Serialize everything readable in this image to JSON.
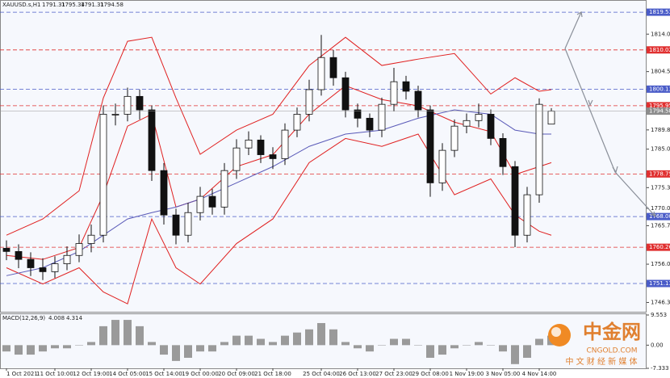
{
  "chart_data": {
    "type": "candlestick",
    "title": "XAUUSD.s,H1",
    "ohlc_header": [
      1791.31,
      1795.34,
      1791.31,
      1794.58
    ],
    "current_price": 1794.58,
    "categories": [
      "1 Oct 2021",
      null,
      null,
      null,
      "11 Oct 10:00",
      null,
      null,
      "12 Oct 19:00",
      null,
      null,
      "14 Oct 05:00",
      null,
      null,
      "15 Oct 14:00",
      null,
      null,
      "19 Oct 00:00",
      null,
      null,
      "20 Oct 09:00",
      null,
      null,
      "21 Oct 18:00",
      null,
      null,
      null,
      "25 Oct 04:00",
      null,
      null,
      "26 Oct 13:00",
      null,
      null,
      "27 Oct 23:00",
      null,
      null,
      "29 Oct 08:00",
      null,
      null,
      "1 Nov 19:00",
      null,
      null,
      "3 Nov 05:00",
      null,
      null,
      "4 Nov 14:00",
      null
    ],
    "open": [
      1760.0,
      1759.2,
      1757.2,
      1755.1,
      1754.1,
      1756.1,
      1758.2,
      1761.2,
      1763.3,
      1793.8,
      1793.8,
      1798.3,
      1794.9,
      1779.6,
      1768.4,
      1763.3,
      1769.0,
      1773.1,
      1770.4,
      1779.6,
      1785.3,
      1787.3,
      1783.6,
      1782.6,
      1789.8,
      1793.8,
      1800.0,
      1808.1,
      1803.0,
      1794.9,
      1792.8,
      1789.8,
      1796.3,
      1802.0,
      1799.6,
      1794.9,
      1776.5,
      1784.7,
      1790.8,
      1792.2,
      1793.8,
      1787.7,
      1780.6,
      1763.3,
      1773.5,
      1791.31
    ],
    "high": [
      1762.0,
      1761.0,
      1759.0,
      1757.5,
      1758.0,
      1760.5,
      1763.5,
      1766.0,
      1796.0,
      1796.5,
      1800.5,
      1800.0,
      1796.0,
      1781.5,
      1770.0,
      1771.5,
      1775.5,
      1775.0,
      1781.5,
      1787.5,
      1789.5,
      1788.5,
      1785.5,
      1791.5,
      1795.5,
      1802.5,
      1813.8,
      1810.0,
      1804.5,
      1796.5,
      1794.0,
      1798.0,
      1805.5,
      1803.5,
      1801.0,
      1796.0,
      1786.5,
      1792.5,
      1794.0,
      1796.5,
      1795.0,
      1789.0,
      1782.0,
      1775.5,
      1797.8,
      1795.34
    ],
    "low": [
      1757.0,
      1755.0,
      1753.0,
      1752.0,
      1752.5,
      1754.5,
      1756.5,
      1759.0,
      1761.5,
      1791.0,
      1792.0,
      1792.5,
      1777.0,
      1766.0,
      1761.0,
      1761.5,
      1767.0,
      1768.5,
      1768.5,
      1777.5,
      1783.5,
      1781.5,
      1780.0,
      1781.0,
      1788.0,
      1792.0,
      1798.5,
      1801.0,
      1793.0,
      1790.5,
      1788.0,
      1788.0,
      1794.5,
      1797.5,
      1793.0,
      1773.0,
      1774.5,
      1783.0,
      1789.0,
      1790.5,
      1786.0,
      1778.5,
      1760.3,
      1761.5,
      1771.5,
      1791.31
    ],
    "close": [
      1759.2,
      1757.2,
      1755.1,
      1754.1,
      1756.1,
      1758.2,
      1761.2,
      1763.3,
      1793.8,
      1793.8,
      1798.3,
      1794.9,
      1779.6,
      1768.4,
      1763.3,
      1769.0,
      1773.1,
      1770.4,
      1779.6,
      1785.3,
      1787.3,
      1783.6,
      1782.6,
      1789.8,
      1793.8,
      1800.0,
      1808.1,
      1803.0,
      1794.9,
      1792.8,
      1789.8,
      1796.3,
      1802.0,
      1799.6,
      1794.9,
      1776.5,
      1784.7,
      1790.8,
      1792.2,
      1793.8,
      1787.7,
      1780.6,
      1763.3,
      1773.5,
      1796.3,
      1794.58
    ],
    "overlays": [
      {
        "color": "#e02020",
        "x": [
          0,
          3,
          6,
          8,
          10,
          12,
          14,
          16,
          19,
          22,
          25,
          28,
          31,
          34,
          37,
          40,
          42,
          44,
          45
        ],
        "values": [
          1763.3,
          1767.4,
          1774.5,
          1797.9,
          1812.2,
          1813.2,
          1797.9,
          1783.7,
          1789.8,
          1793.8,
          1806.1,
          1813.2,
          1806.1,
          1807.7,
          1809.1,
          1798.9,
          1803.0,
          1799.6,
          1800.0
        ]
      },
      {
        "color": "#e02020",
        "x": [
          0,
          3,
          6,
          8,
          10,
          12,
          14,
          16,
          19,
          22,
          25,
          28,
          31,
          34,
          37,
          40,
          42,
          44,
          45
        ],
        "values": [
          1758.2,
          1757.2,
          1760.2,
          1773.5,
          1790.8,
          1793.8,
          1770.4,
          1772.4,
          1780.6,
          1783.6,
          1793.8,
          1801.0,
          1797.5,
          1795.9,
          1791.8,
          1789.4,
          1778.6,
          1780.6,
          1781.6
        ]
      },
      {
        "color": "#e02020",
        "x": [
          0,
          3,
          6,
          8,
          10,
          12,
          14,
          16,
          19,
          22,
          25,
          28,
          31,
          34,
          37,
          40,
          42,
          44,
          45
        ],
        "values": [
          1755.1,
          1751.0,
          1755.1,
          1749.0,
          1746.0,
          1767.4,
          1755.1,
          1751.0,
          1761.2,
          1767.4,
          1781.6,
          1787.7,
          1785.7,
          1788.8,
          1773.5,
          1777.5,
          1768.4,
          1764.3,
          1763.3
        ]
      },
      {
        "color": "#5a5ab8",
        "x": [
          0,
          3,
          6,
          8,
          10,
          12,
          14,
          16,
          19,
          22,
          25,
          28,
          31,
          34,
          37,
          40,
          42,
          44,
          45
        ],
        "values": [
          1753.1,
          1755.1,
          1759.2,
          1763.3,
          1767.4,
          1769.0,
          1770.4,
          1772.4,
          1776.5,
          1780.6,
          1785.7,
          1788.8,
          1789.8,
          1792.8,
          1794.9,
          1793.8,
          1789.8,
          1788.8,
          1788.8
        ]
      }
    ],
    "levels": [
      {
        "value": 1819.53,
        "color": "#4a5cc8"
      },
      {
        "value": 1810.02,
        "color": "#e03030"
      },
      {
        "value": 1800.13,
        "color": "#4a5cc8"
      },
      {
        "value": 1795.95,
        "color": "#e03030"
      },
      {
        "value": 1778.75,
        "color": "#e03030"
      },
      {
        "value": 1768.0,
        "label": "1768.00",
        "color": "#4a5cc8"
      },
      {
        "value": 1760.26,
        "color": "#e03030"
      },
      {
        "value": 1751.13,
        "color": "#4a5cc8"
      }
    ],
    "ylim": [
      1744,
      1822.4
    ],
    "yticks": [
      {
        "value": 1814,
        "label": "1814.00"
      },
      1804.55,
      1789.85,
      {
        "value": 1785,
        "label": "1785.00"
      },
      {
        "value": 1775.3,
        "label": "1775.30"
      },
      1770.05,
      {
        "value": 1765.7,
        "label": "1765.70"
      },
      {
        "value": 1756,
        "label": "1756.00"
      },
      1746.35
    ],
    "macd": {
      "label": "MACD(12,26,9)",
      "readings": [
        4.008,
        4.314
      ],
      "color": "#9a9a9a",
      "values": [
        -2,
        -3,
        -3,
        -2,
        -1,
        -1,
        0,
        1,
        6,
        8,
        8,
        6,
        1,
        -3,
        -5,
        -4,
        -2,
        -2,
        1,
        3,
        3,
        2,
        1,
        3,
        4,
        5,
        7,
        5,
        1,
        -1,
        -2,
        0,
        2,
        2,
        0,
        -4,
        -3,
        -1,
        0,
        1,
        0,
        -2,
        -6,
        -4,
        2,
        3
      ],
      "ylim": [
        -7.333,
        9.553
      ],
      "yticks": [
        9.553,
        {
          "value": 0,
          "label": "0.00"
        },
        -7.333
      ]
    }
  },
  "watermark": {
    "name": "中金网",
    "domain": "CNGOLD.COM",
    "slogan": "中 文 财 经 新 媒 体"
  }
}
